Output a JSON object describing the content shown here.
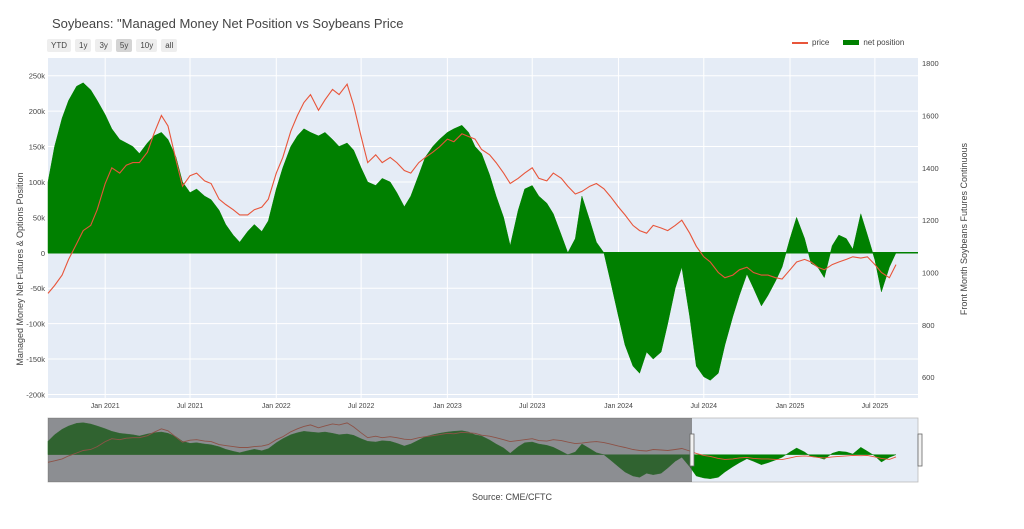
{
  "title": "Soybeans: \"Managed Money Net Position vs Soybeans Price",
  "range_buttons": [
    {
      "label": "YTD",
      "active": false
    },
    {
      "label": "1y",
      "active": false
    },
    {
      "label": "3y",
      "active": false
    },
    {
      "label": "5y",
      "active": true
    },
    {
      "label": "10y",
      "active": false
    },
    {
      "label": "all",
      "active": false
    }
  ],
  "legend": {
    "price": "price",
    "net": "net position"
  },
  "source": "Source: CME/CFTC",
  "colors": {
    "price": "#e8553a",
    "net": "#008000",
    "plot_bg": "#e5ecf6",
    "grid": "#ffffff"
  },
  "chart_data": {
    "type": "area",
    "title": "Soybeans: \"Managed Money Net Position vs Soybeans Price",
    "ylabel": "Managed Money Net Futures & Options Position",
    "y2label": "Front Month Soybeans Futures Continuous",
    "ylim": [
      -205000,
      275000
    ],
    "y2lim": [
      520,
      1820
    ],
    "xlim": [
      "2020-09-01",
      "2025-10-01"
    ],
    "yticks": [
      -200000,
      -150000,
      -100000,
      -50000,
      0,
      50000,
      100000,
      150000,
      200000,
      250000
    ],
    "ytick_labels": [
      "-200k",
      "-150k",
      "-100k",
      "-50k",
      "0",
      "50k",
      "100k",
      "150k",
      "200k",
      "250k"
    ],
    "y2ticks": [
      600,
      800,
      1000,
      1200,
      1400,
      1600,
      1800
    ],
    "xticks": [
      "2021-01-01",
      "2021-07-01",
      "2022-01-01",
      "2022-07-01",
      "2023-01-01",
      "2023-07-01",
      "2024-01-01",
      "2024-07-01",
      "2025-01-01",
      "2025-07-01"
    ],
    "xtick_labels": [
      "Jan 2021",
      "Jul 2021",
      "Jan 2022",
      "Jul 2022",
      "Jan 2023",
      "Jul 2023",
      "Jan 2024",
      "Jul 2024",
      "Jan 2025",
      "Jul 2025"
    ],
    "grid": true,
    "legend_position": "top-right",
    "series": [
      {
        "name": "net position",
        "type": "area",
        "axis": "left",
        "points": [
          [
            "2020-09-01",
            100000
          ],
          [
            "2020-09-15",
            150000
          ],
          [
            "2020-10-01",
            190000
          ],
          [
            "2020-10-15",
            215000
          ],
          [
            "2020-11-01",
            235000
          ],
          [
            "2020-11-15",
            240000
          ],
          [
            "2020-12-01",
            230000
          ],
          [
            "2020-12-15",
            215000
          ],
          [
            "2021-01-01",
            195000
          ],
          [
            "2021-01-15",
            175000
          ],
          [
            "2021-02-01",
            160000
          ],
          [
            "2021-02-15",
            155000
          ],
          [
            "2021-03-01",
            150000
          ],
          [
            "2021-03-15",
            140000
          ],
          [
            "2021-04-01",
            155000
          ],
          [
            "2021-04-15",
            165000
          ],
          [
            "2021-05-01",
            170000
          ],
          [
            "2021-05-15",
            160000
          ],
          [
            "2021-06-01",
            135000
          ],
          [
            "2021-06-15",
            100000
          ],
          [
            "2021-07-01",
            85000
          ],
          [
            "2021-07-15",
            90000
          ],
          [
            "2021-08-01",
            80000
          ],
          [
            "2021-08-15",
            75000
          ],
          [
            "2021-09-01",
            60000
          ],
          [
            "2021-09-15",
            40000
          ],
          [
            "2021-10-01",
            25000
          ],
          [
            "2021-10-15",
            15000
          ],
          [
            "2021-11-01",
            30000
          ],
          [
            "2021-11-15",
            40000
          ],
          [
            "2021-12-01",
            30000
          ],
          [
            "2021-12-15",
            45000
          ],
          [
            "2022-01-01",
            90000
          ],
          [
            "2022-01-15",
            120000
          ],
          [
            "2022-02-01",
            150000
          ],
          [
            "2022-02-15",
            165000
          ],
          [
            "2022-03-01",
            175000
          ],
          [
            "2022-03-15",
            170000
          ],
          [
            "2022-04-01",
            165000
          ],
          [
            "2022-04-15",
            170000
          ],
          [
            "2022-05-01",
            160000
          ],
          [
            "2022-05-15",
            150000
          ],
          [
            "2022-06-01",
            155000
          ],
          [
            "2022-06-15",
            145000
          ],
          [
            "2022-07-01",
            120000
          ],
          [
            "2022-07-15",
            100000
          ],
          [
            "2022-08-01",
            95000
          ],
          [
            "2022-08-15",
            105000
          ],
          [
            "2022-09-01",
            100000
          ],
          [
            "2022-09-15",
            85000
          ],
          [
            "2022-10-01",
            65000
          ],
          [
            "2022-10-15",
            80000
          ],
          [
            "2022-11-01",
            110000
          ],
          [
            "2022-11-15",
            135000
          ],
          [
            "2022-12-01",
            150000
          ],
          [
            "2022-12-15",
            160000
          ],
          [
            "2023-01-01",
            170000
          ],
          [
            "2023-01-15",
            175000
          ],
          [
            "2023-02-01",
            180000
          ],
          [
            "2023-02-15",
            170000
          ],
          [
            "2023-03-01",
            150000
          ],
          [
            "2023-03-15",
            140000
          ],
          [
            "2023-04-01",
            110000
          ],
          [
            "2023-04-15",
            80000
          ],
          [
            "2023-05-01",
            50000
          ],
          [
            "2023-05-15",
            10000
          ],
          [
            "2023-06-01",
            60000
          ],
          [
            "2023-06-15",
            90000
          ],
          [
            "2023-07-01",
            95000
          ],
          [
            "2023-07-15",
            80000
          ],
          [
            "2023-08-01",
            70000
          ],
          [
            "2023-08-15",
            55000
          ],
          [
            "2023-09-01",
            25000
          ],
          [
            "2023-09-15",
            0
          ],
          [
            "2023-10-01",
            20000
          ],
          [
            "2023-10-15",
            80000
          ],
          [
            "2023-11-01",
            45000
          ],
          [
            "2023-11-15",
            15000
          ],
          [
            "2023-12-01",
            0
          ],
          [
            "2023-12-15",
            -40000
          ],
          [
            "2024-01-01",
            -90000
          ],
          [
            "2024-01-15",
            -130000
          ],
          [
            "2024-02-01",
            -160000
          ],
          [
            "2024-02-15",
            -170000
          ],
          [
            "2024-03-01",
            -140000
          ],
          [
            "2024-03-15",
            -150000
          ],
          [
            "2024-04-01",
            -140000
          ],
          [
            "2024-04-15",
            -100000
          ],
          [
            "2024-05-01",
            -50000
          ],
          [
            "2024-05-15",
            -20000
          ],
          [
            "2024-06-01",
            -90000
          ],
          [
            "2024-06-15",
            -160000
          ],
          [
            "2024-07-01",
            -175000
          ],
          [
            "2024-07-15",
            -180000
          ],
          [
            "2024-08-01",
            -170000
          ],
          [
            "2024-08-15",
            -130000
          ],
          [
            "2024-09-01",
            -90000
          ],
          [
            "2024-09-15",
            -60000
          ],
          [
            "2024-10-01",
            -30000
          ],
          [
            "2024-10-15",
            -50000
          ],
          [
            "2024-11-01",
            -75000
          ],
          [
            "2024-11-15",
            -60000
          ],
          [
            "2024-12-01",
            -40000
          ],
          [
            "2024-12-15",
            -20000
          ],
          [
            "2025-01-01",
            20000
          ],
          [
            "2025-01-15",
            50000
          ],
          [
            "2025-02-01",
            20000
          ],
          [
            "2025-02-15",
            -15000
          ],
          [
            "2025-03-01",
            -20000
          ],
          [
            "2025-03-15",
            -35000
          ],
          [
            "2025-04-01",
            10000
          ],
          [
            "2025-04-15",
            25000
          ],
          [
            "2025-05-01",
            20000
          ],
          [
            "2025-05-15",
            5000
          ],
          [
            "2025-06-01",
            55000
          ],
          [
            "2025-06-15",
            25000
          ],
          [
            "2025-07-01",
            -10000
          ],
          [
            "2025-07-15",
            -55000
          ],
          [
            "2025-08-01",
            -20000
          ],
          [
            "2025-08-15",
            0
          ]
        ]
      },
      {
        "name": "price",
        "type": "line",
        "axis": "right",
        "points": [
          [
            "2020-09-01",
            920
          ],
          [
            "2020-09-15",
            950
          ],
          [
            "2020-10-01",
            990
          ],
          [
            "2020-10-15",
            1050
          ],
          [
            "2020-11-01",
            1110
          ],
          [
            "2020-11-15",
            1160
          ],
          [
            "2020-12-01",
            1180
          ],
          [
            "2020-12-15",
            1240
          ],
          [
            "2021-01-01",
            1340
          ],
          [
            "2021-01-15",
            1400
          ],
          [
            "2021-02-01",
            1380
          ],
          [
            "2021-02-15",
            1410
          ],
          [
            "2021-03-01",
            1420
          ],
          [
            "2021-03-15",
            1420
          ],
          [
            "2021-04-01",
            1460
          ],
          [
            "2021-04-15",
            1530
          ],
          [
            "2021-05-01",
            1600
          ],
          [
            "2021-05-15",
            1560
          ],
          [
            "2021-06-01",
            1430
          ],
          [
            "2021-06-15",
            1330
          ],
          [
            "2021-07-01",
            1370
          ],
          [
            "2021-07-15",
            1380
          ],
          [
            "2021-08-01",
            1350
          ],
          [
            "2021-08-15",
            1340
          ],
          [
            "2021-09-01",
            1280
          ],
          [
            "2021-09-15",
            1260
          ],
          [
            "2021-10-01",
            1240
          ],
          [
            "2021-10-15",
            1220
          ],
          [
            "2021-11-01",
            1220
          ],
          [
            "2021-11-15",
            1240
          ],
          [
            "2021-12-01",
            1250
          ],
          [
            "2021-12-15",
            1280
          ],
          [
            "2022-01-01",
            1380
          ],
          [
            "2022-01-15",
            1440
          ],
          [
            "2022-02-01",
            1540
          ],
          [
            "2022-02-15",
            1600
          ],
          [
            "2022-03-01",
            1650
          ],
          [
            "2022-03-15",
            1680
          ],
          [
            "2022-04-01",
            1620
          ],
          [
            "2022-04-15",
            1660
          ],
          [
            "2022-05-01",
            1700
          ],
          [
            "2022-05-15",
            1680
          ],
          [
            "2022-06-01",
            1720
          ],
          [
            "2022-06-15",
            1640
          ],
          [
            "2022-07-01",
            1520
          ],
          [
            "2022-07-15",
            1420
          ],
          [
            "2022-08-01",
            1450
          ],
          [
            "2022-08-15",
            1420
          ],
          [
            "2022-09-01",
            1440
          ],
          [
            "2022-09-15",
            1420
          ],
          [
            "2022-10-01",
            1390
          ],
          [
            "2022-10-15",
            1380
          ],
          [
            "2022-11-01",
            1420
          ],
          [
            "2022-11-15",
            1440
          ],
          [
            "2022-12-01",
            1460
          ],
          [
            "2022-12-15",
            1480
          ],
          [
            "2023-01-01",
            1510
          ],
          [
            "2023-01-15",
            1500
          ],
          [
            "2023-02-01",
            1530
          ],
          [
            "2023-02-15",
            1520
          ],
          [
            "2023-03-01",
            1510
          ],
          [
            "2023-03-15",
            1470
          ],
          [
            "2023-04-01",
            1450
          ],
          [
            "2023-04-15",
            1420
          ],
          [
            "2023-05-01",
            1380
          ],
          [
            "2023-05-15",
            1340
          ],
          [
            "2023-06-01",
            1360
          ],
          [
            "2023-06-15",
            1380
          ],
          [
            "2023-07-01",
            1400
          ],
          [
            "2023-07-15",
            1360
          ],
          [
            "2023-08-01",
            1350
          ],
          [
            "2023-08-15",
            1380
          ],
          [
            "2023-09-01",
            1360
          ],
          [
            "2023-09-15",
            1330
          ],
          [
            "2023-10-01",
            1300
          ],
          [
            "2023-10-15",
            1310
          ],
          [
            "2023-11-01",
            1330
          ],
          [
            "2023-11-15",
            1340
          ],
          [
            "2023-12-01",
            1320
          ],
          [
            "2023-12-15",
            1290
          ],
          [
            "2024-01-01",
            1250
          ],
          [
            "2024-01-15",
            1220
          ],
          [
            "2024-02-01",
            1180
          ],
          [
            "2024-02-15",
            1160
          ],
          [
            "2024-03-01",
            1150
          ],
          [
            "2024-03-15",
            1180
          ],
          [
            "2024-04-01",
            1170
          ],
          [
            "2024-04-15",
            1160
          ],
          [
            "2024-05-01",
            1180
          ],
          [
            "2024-05-15",
            1200
          ],
          [
            "2024-06-01",
            1150
          ],
          [
            "2024-06-15",
            1100
          ],
          [
            "2024-07-01",
            1060
          ],
          [
            "2024-07-15",
            1040
          ],
          [
            "2024-08-01",
            1000
          ],
          [
            "2024-08-15",
            980
          ],
          [
            "2024-09-01",
            990
          ],
          [
            "2024-09-15",
            1010
          ],
          [
            "2024-10-01",
            1020
          ],
          [
            "2024-10-15",
            1000
          ],
          [
            "2024-11-01",
            990
          ],
          [
            "2024-11-15",
            990
          ],
          [
            "2024-12-01",
            980
          ],
          [
            "2024-12-15",
            975
          ],
          [
            "2025-01-01",
            1010
          ],
          [
            "2025-01-15",
            1040
          ],
          [
            "2025-02-01",
            1050
          ],
          [
            "2025-02-15",
            1040
          ],
          [
            "2025-03-01",
            1020
          ],
          [
            "2025-03-15",
            1010
          ],
          [
            "2025-04-01",
            1030
          ],
          [
            "2025-04-15",
            1040
          ],
          [
            "2025-05-01",
            1050
          ],
          [
            "2025-05-15",
            1060
          ],
          [
            "2025-06-01",
            1055
          ],
          [
            "2025-06-15",
            1060
          ],
          [
            "2025-07-01",
            1030
          ],
          [
            "2025-07-15",
            1000
          ],
          [
            "2025-08-01",
            980
          ],
          [
            "2025-08-15",
            1030
          ]
        ]
      }
    ]
  }
}
